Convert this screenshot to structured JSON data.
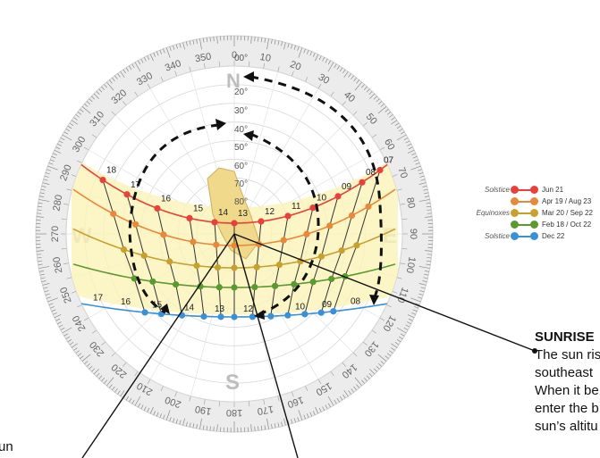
{
  "compass": {
    "ticks": [
      "0",
      "10",
      "20",
      "30",
      "40",
      "50",
      "60",
      "70",
      "80",
      "90",
      "100",
      "110",
      "120",
      "130",
      "140",
      "150",
      "160",
      "170",
      "180",
      "190",
      "200",
      "210",
      "220",
      "230",
      "240",
      "250",
      "260",
      "270",
      "280",
      "290",
      "300",
      "310",
      "320",
      "330",
      "340",
      "350"
    ],
    "cardinals": {
      "n": "N",
      "e": "E",
      "s": "S",
      "w": "W"
    }
  },
  "altitude_labels": [
    "00°",
    "20°",
    "30°",
    "40°",
    "50°",
    "60°",
    "70°",
    "80°"
  ],
  "sun_paths": [
    {
      "name": "Jun 21",
      "color": "#e8403a",
      "hours": [
        "18",
        "17",
        "16",
        "15",
        "14",
        "13",
        "12",
        "11",
        "10",
        "09",
        "08",
        "07"
      ]
    },
    {
      "name": "Apr 19 / Aug 23",
      "color": "#e8883a",
      "hours": []
    },
    {
      "name": "Mar 20 / Sep 22",
      "color": "#c8a030",
      "hours": []
    },
    {
      "name": "Feb 18 / Oct 22",
      "color": "#5a9a30",
      "hours": []
    },
    {
      "name": "Dec 22",
      "color": "#3a90d8",
      "hours": [
        "17",
        "16",
        "15",
        "14",
        "13",
        "12",
        "10",
        "09",
        "08"
      ]
    }
  ],
  "legend": {
    "groups": [
      "Solstice",
      "Equinoxes",
      "Solstice"
    ],
    "items": [
      {
        "group": "Solstice",
        "label": "Jun 21",
        "color": "#e8403a"
      },
      {
        "group": "",
        "label": "Apr 19 / Aug 23",
        "color": "#e8883a"
      },
      {
        "group": "Equinoxes",
        "label": "Mar 20 / Sep 22",
        "color": "#c8a030"
      },
      {
        "group": "",
        "label": "Feb 18 / Oct 22",
        "color": "#5a9a30"
      },
      {
        "group": "Solstice",
        "label": "Dec 22",
        "color": "#3a90d8"
      }
    ]
  },
  "annotation": {
    "title": "SUNRISE",
    "lines": [
      "The sun ris",
      "southeast",
      "When it be",
      "enter the b",
      "sun’s altitu"
    ]
  },
  "left_text": "un"
}
